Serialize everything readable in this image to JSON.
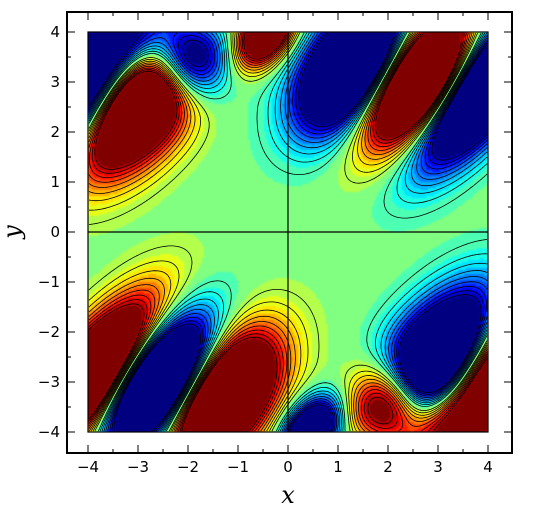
{
  "chart_data": {
    "type": "heatmap",
    "title": "",
    "xlabel": "x",
    "ylabel": "y",
    "xlim": [
      -4,
      4
    ],
    "ylim": [
      -4,
      4
    ],
    "xticks": [
      -4,
      -3,
      -2,
      -1,
      0,
      1,
      2,
      3,
      4
    ],
    "yticks": [
      -4,
      -3,
      -2,
      -1,
      0,
      1,
      2,
      3,
      4
    ],
    "xtick_labels": [
      "−4",
      "−3",
      "−2",
      "−1",
      "0",
      "1",
      "2",
      "3",
      "4"
    ],
    "ytick_labels": [
      "−4",
      "−3",
      "−2",
      "−1",
      "0",
      "1",
      "2",
      "3",
      "4"
    ],
    "colormap": "jet",
    "contour_line_color": "#000000",
    "reference_lines": {
      "x": 0,
      "y": 0
    },
    "frame_color": "#000000",
    "background_color": "#ffffff"
  }
}
